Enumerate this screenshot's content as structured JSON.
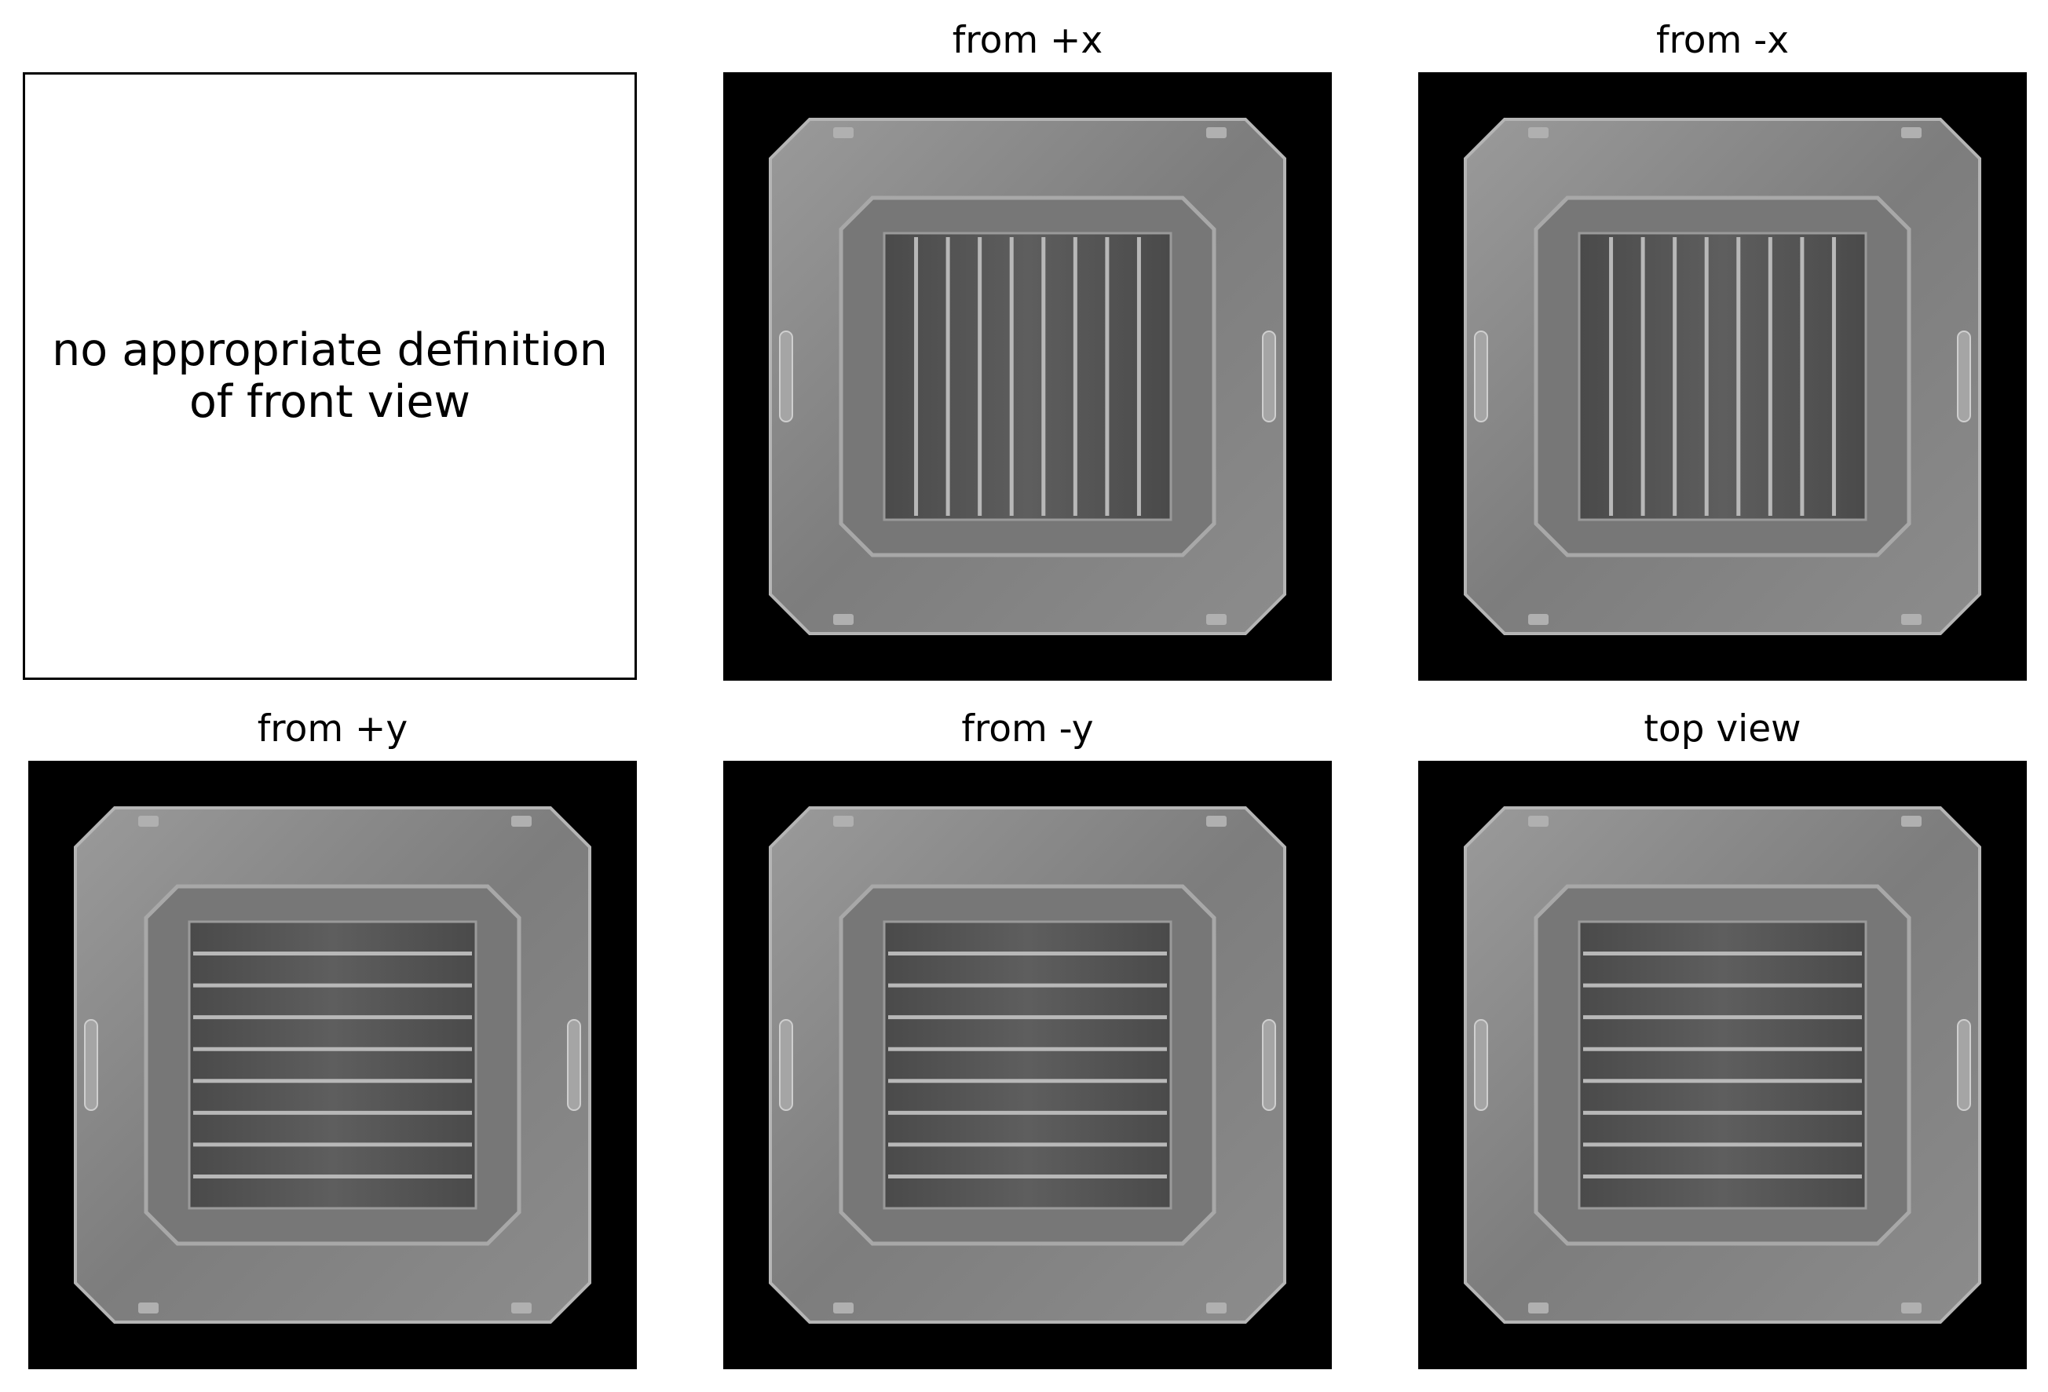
{
  "figure": {
    "front_view": {
      "message_line1": "no appropriate definition",
      "message_line2": "of front view"
    },
    "views": [
      {
        "title": "from +x",
        "slat_orientation": "vertical",
        "image": "metal-crate-render"
      },
      {
        "title": "from -x",
        "slat_orientation": "vertical",
        "image": "metal-crate-render"
      },
      {
        "title": "from +y",
        "slat_orientation": "horizontal",
        "image": "metal-crate-render"
      },
      {
        "title": "from -y",
        "slat_orientation": "horizontal",
        "image": "metal-crate-render"
      },
      {
        "title": "top view",
        "slat_orientation": "horizontal",
        "image": "metal-crate-render"
      }
    ],
    "colors": {
      "background": "#000000",
      "crate": "#8a8a8a",
      "frame": "#000000"
    }
  }
}
